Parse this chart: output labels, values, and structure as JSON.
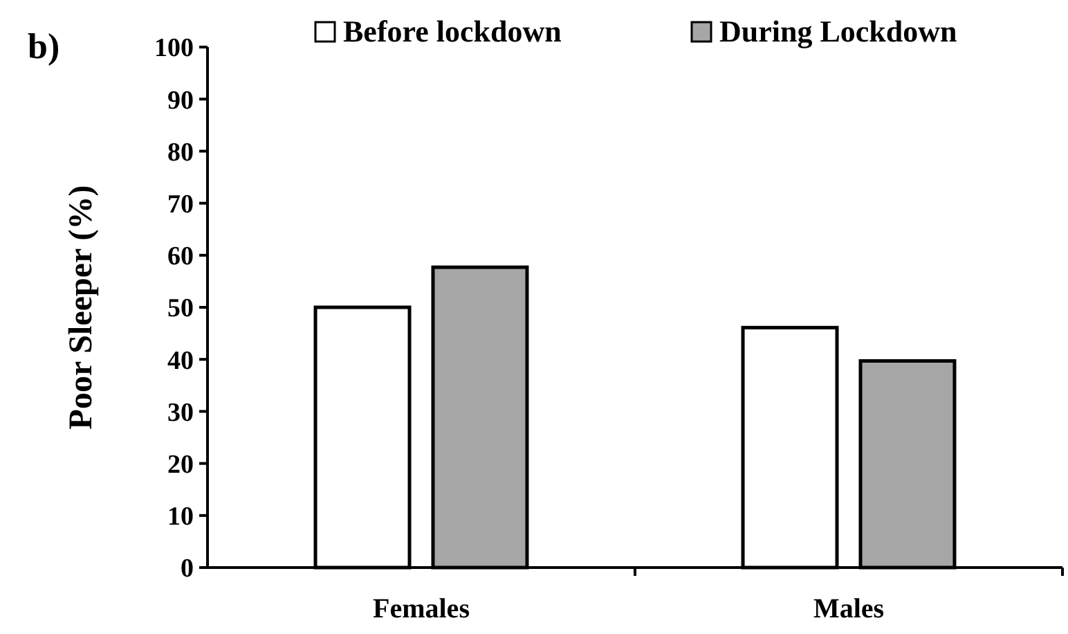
{
  "chart_data": {
    "type": "bar",
    "title": "b)",
    "ylabel": "Poor Sleeper (%)",
    "categories": [
      "Females",
      "Males"
    ],
    "series": [
      {
        "name": "Before lockdown",
        "color": "#ffffff",
        "values": [
          50,
          46.1
        ]
      },
      {
        "name": "During Lockdown",
        "color": "#a6a6a6",
        "values": [
          57.7,
          39.7
        ]
      }
    ],
    "ylim": [
      0,
      100
    ],
    "yticks": [
      0,
      10,
      20,
      30,
      40,
      50,
      60,
      70,
      80,
      90,
      100
    ],
    "grid": false,
    "legend": "top right"
  }
}
